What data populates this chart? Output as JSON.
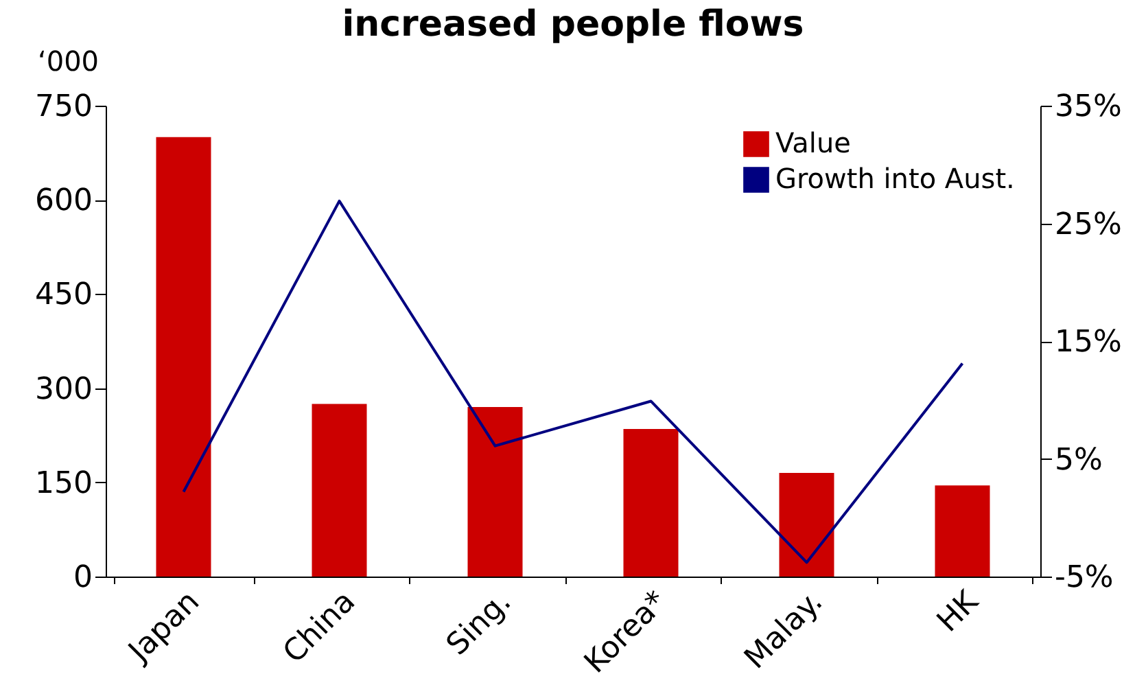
{
  "chart_data": {
    "type": "bar",
    "title": "increased people flows",
    "ylabel": "‘000",
    "categories": [
      "Japan",
      "China",
      "Sing.",
      "Korea*",
      "Malay.",
      "HK"
    ],
    "series": [
      {
        "name": "Value",
        "color": "#cc0000",
        "values": [
          700,
          275,
          270,
          235,
          165,
          145
        ]
      },
      {
        "name": "Growth into Aust.",
        "type": "line",
        "axis": "y2",
        "color": "#000080",
        "values": [
          2.2,
          26.9,
          6.1,
          9.9,
          -3.8,
          13.1
        ]
      }
    ],
    "ylim": [
      0,
      750
    ],
    "yticks": [
      0,
      150,
      300,
      450,
      600,
      750
    ],
    "y2lim": [
      -5,
      35
    ],
    "y2ticks": [
      {
        "value": 35,
        "label": "35%"
      },
      {
        "value": 25,
        "label": "25%"
      },
      {
        "value": 15,
        "label": "15%"
      },
      {
        "value": 5,
        "label": "5%"
      },
      {
        "value": -5,
        "label": "-5%"
      }
    ],
    "grid": false,
    "legend": "top right"
  }
}
